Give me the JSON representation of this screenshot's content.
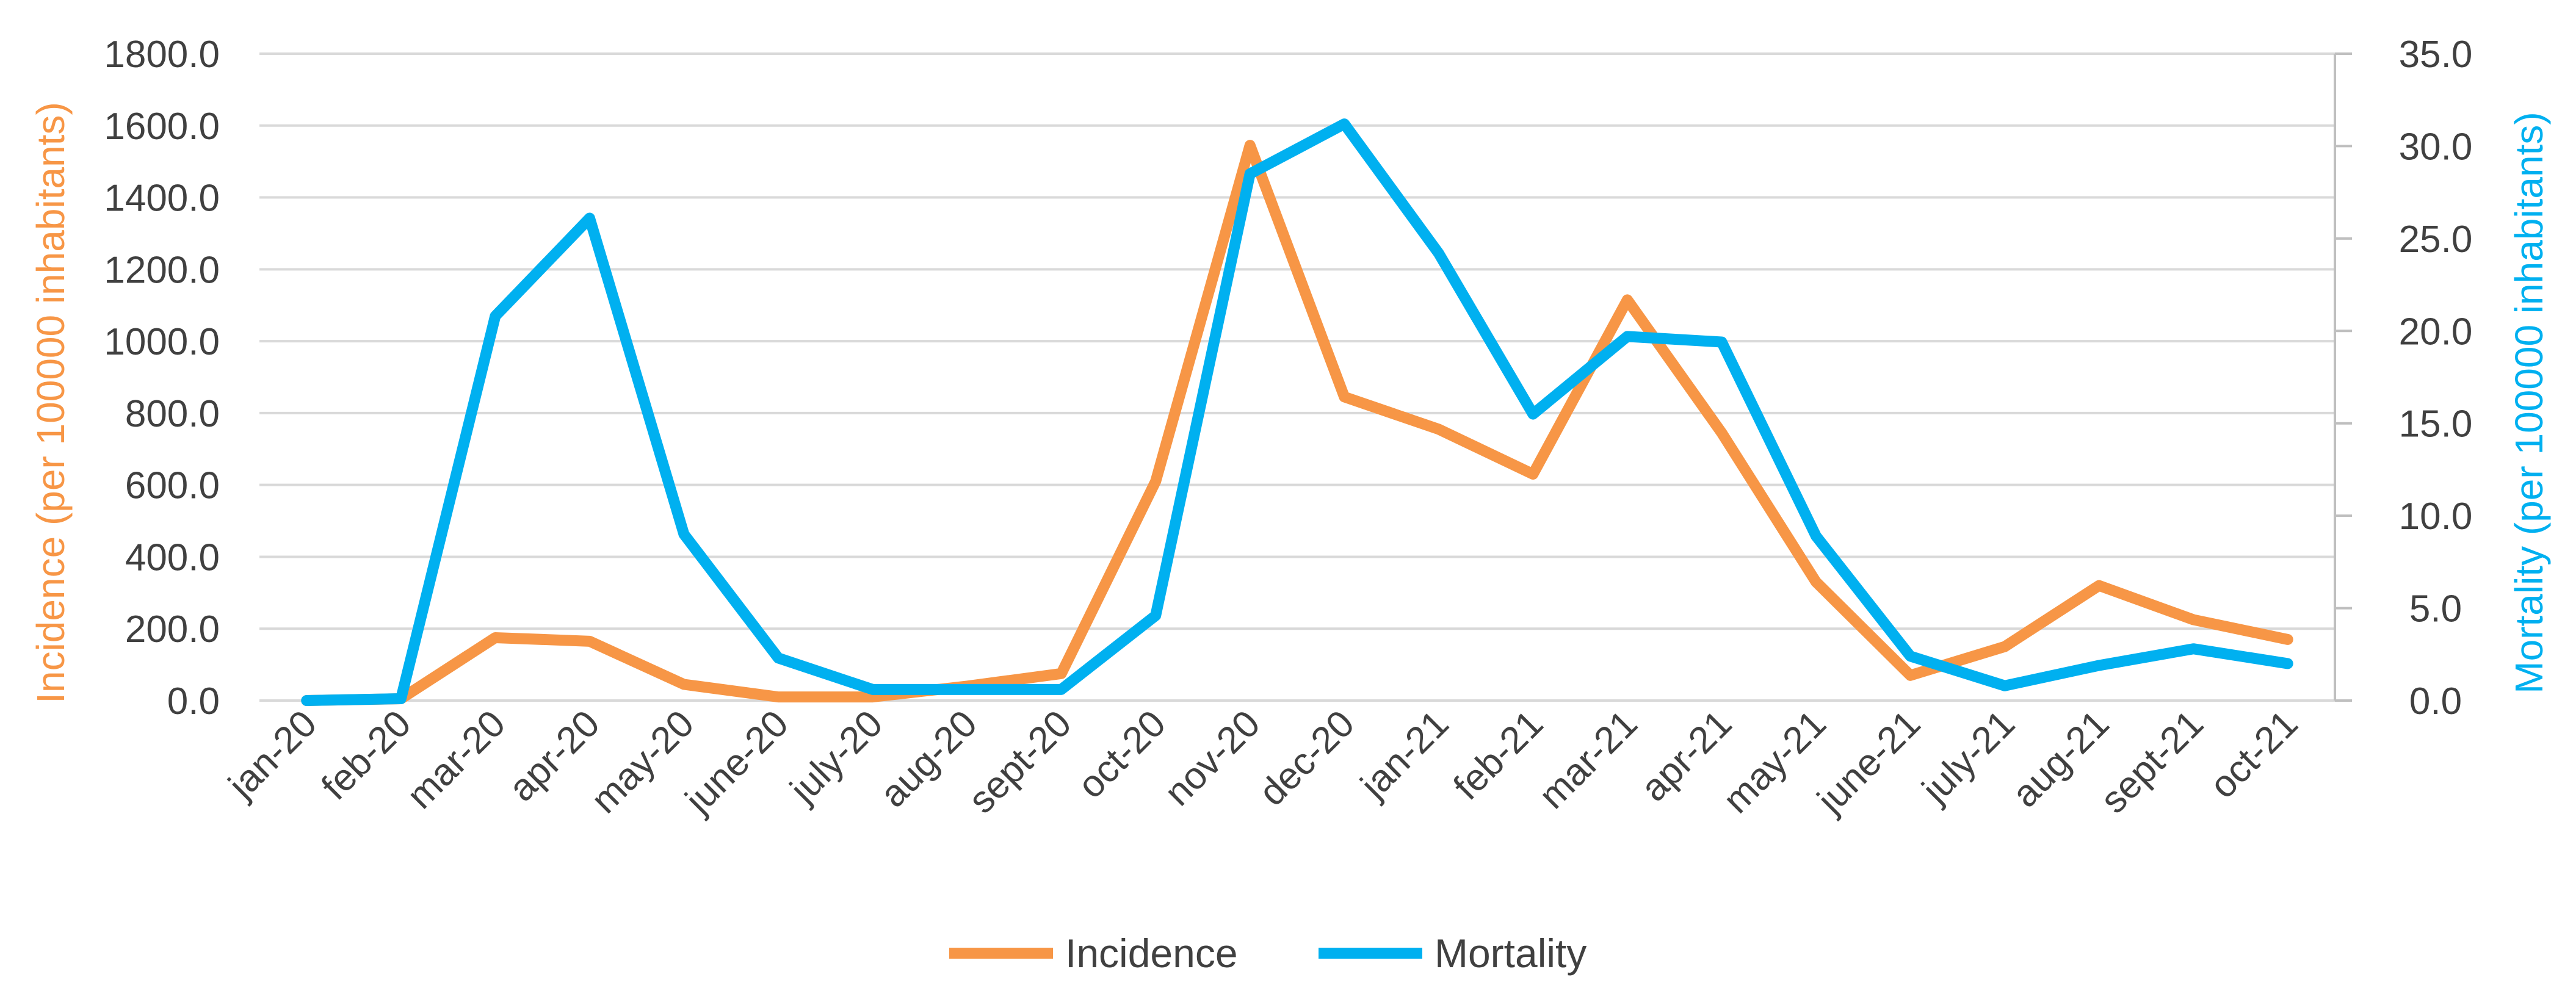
{
  "chart_data": {
    "type": "line",
    "title": "",
    "categories": [
      "jan-20",
      "feb-20",
      "mar-20",
      "apr-20",
      "may-20",
      "june-20",
      "july-20",
      "aug-20",
      "sept-20",
      "oct-20",
      "nov-20",
      "dec-20",
      "jan-21",
      "feb-21",
      "mar-21",
      "apr-21",
      "may-21",
      "june-21",
      "july-21",
      "aug-21",
      "sept-21",
      "oct-21"
    ],
    "series": [
      {
        "name": "Incidence",
        "axis": "left",
        "color": "#F79646",
        "values": [
          0,
          5,
          175,
          165,
          45,
          10,
          10,
          40,
          75,
          610,
          1545,
          845,
          755,
          630,
          1115,
          745,
          330,
          70,
          150,
          320,
          225,
          170
        ]
      },
      {
        "name": "Mortality",
        "axis": "right",
        "color": "#00B0F0",
        "values": [
          0.0,
          0.1,
          20.8,
          26.1,
          9.0,
          2.3,
          0.6,
          0.6,
          0.6,
          4.6,
          28.5,
          31.2,
          24.2,
          15.5,
          19.7,
          19.4,
          8.9,
          2.4,
          0.8,
          1.9,
          2.8,
          2.0
        ]
      }
    ],
    "y_left": {
      "label": "Incidence (per 100000 inhabitants)",
      "color": "#F79646",
      "ylim": [
        0,
        1800
      ],
      "ticks": [
        "0.0",
        "200.0",
        "400.0",
        "600.0",
        "800.0",
        "1000.0",
        "1200.0",
        "1400.0",
        "1600.0",
        "1800.0"
      ]
    },
    "y_right": {
      "label": "Mortality (per 100000 inhabitants)",
      "color": "#00B0F0",
      "ylim": [
        0,
        35
      ],
      "ticks": [
        "0.0",
        "5.0",
        "10.0",
        "15.0",
        "20.0",
        "25.0",
        "30.0",
        "35.0"
      ]
    },
    "grid": true,
    "legend": {
      "position": "bottom",
      "entries": [
        "Incidence",
        "Mortality"
      ]
    }
  }
}
